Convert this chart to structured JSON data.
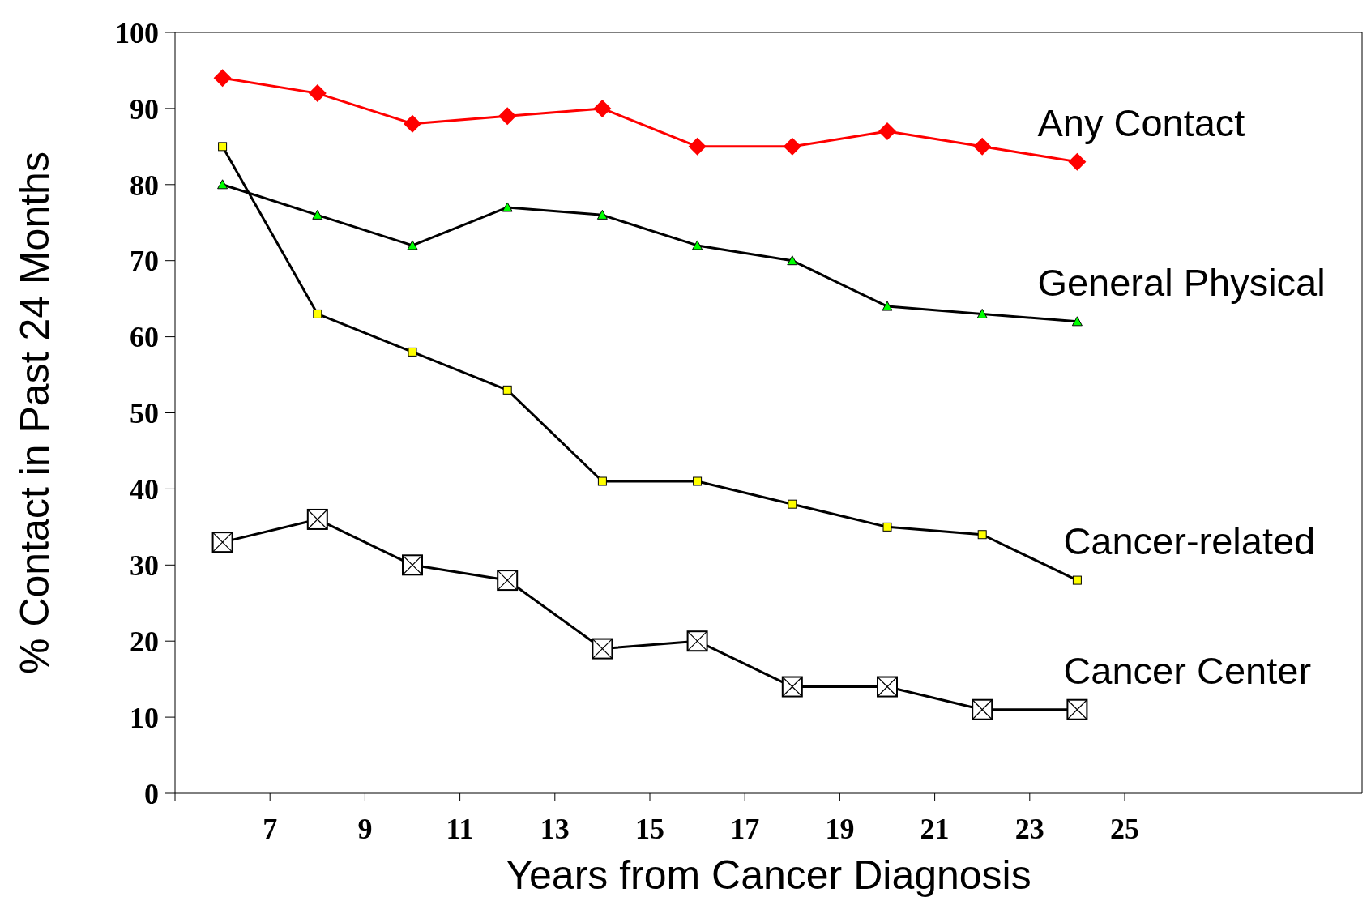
{
  "chart_data": {
    "type": "line",
    "xlabel": "Years from Cancer Diagnosis",
    "ylabel": "% Contact in Past 24 Months",
    "x": [
      6,
      8,
      10,
      12,
      14,
      16,
      18,
      20,
      22,
      24
    ],
    "series": [
      {
        "name": "Any Contact",
        "color": "#ff0000",
        "marker": "diamond",
        "values": [
          94,
          92,
          88,
          89,
          90,
          85,
          85,
          87,
          85,
          83
        ]
      },
      {
        "name": "General Physical",
        "color": "#000000",
        "marker": "triangle",
        "values": [
          80,
          76,
          72,
          77,
          76,
          72,
          70,
          64,
          63,
          62
        ]
      },
      {
        "name": "Cancer-related",
        "color": "#000000",
        "marker": "square",
        "values": [
          85,
          63,
          58,
          53,
          41,
          41,
          38,
          35,
          34,
          28
        ]
      },
      {
        "name": "Cancer Center",
        "color": "#000000",
        "marker": "square",
        "values": [
          33,
          36,
          30,
          28,
          19,
          20,
          14,
          14,
          11,
          11
        ]
      }
    ],
    "xlim": [
      5,
      30
    ],
    "xticks": [
      {
        "value": 5,
        "label": null
      },
      7,
      9,
      11,
      13,
      15,
      17,
      19,
      21,
      23,
      25
    ],
    "ylim": [
      0,
      100
    ],
    "yticks": [
      0,
      10,
      20,
      30,
      40,
      50,
      60,
      70,
      80,
      90,
      100
    ],
    "grid": false
  }
}
